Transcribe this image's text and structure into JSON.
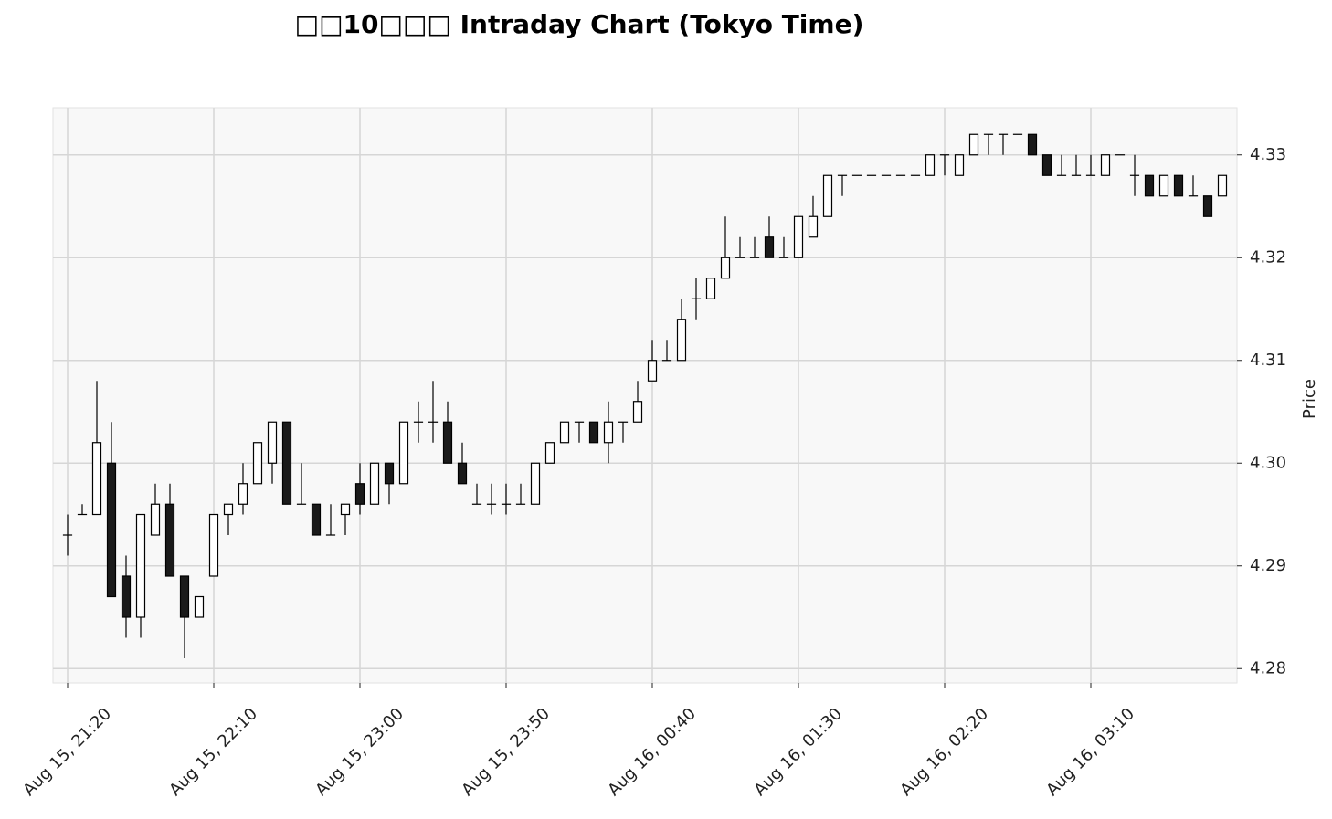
{
  "chart_data": {
    "type": "candlestick",
    "title": "□□10□□□ Intraday Chart (Tokyo Time)",
    "y_label": "Price",
    "categories": [
      "Aug 15, 21:20",
      null,
      null,
      null,
      null,
      null,
      null,
      null,
      null,
      null,
      "Aug 15, 22:10",
      null,
      null,
      null,
      null,
      null,
      null,
      null,
      null,
      null,
      "Aug 15, 23:00",
      null,
      null,
      null,
      null,
      null,
      null,
      null,
      null,
      null,
      "Aug 15, 23:50",
      null,
      null,
      null,
      null,
      null,
      null,
      null,
      null,
      null,
      "Aug 16, 00:40",
      null,
      null,
      null,
      null,
      null,
      null,
      null,
      null,
      null,
      "Aug 16, 01:30",
      null,
      null,
      null,
      null,
      null,
      null,
      null,
      null,
      null,
      "Aug 16, 02:20",
      null,
      null,
      null,
      null,
      null,
      null,
      null,
      null,
      null,
      "Aug 16, 03:10",
      null,
      null,
      null,
      null,
      null,
      null,
      null,
      null,
      null
    ],
    "open": [
      4.293,
      4.295,
      4.295,
      4.3,
      4.289,
      4.285,
      4.293,
      4.296,
      4.289,
      4.285,
      4.289,
      4.295,
      4.296,
      4.298,
      4.3,
      4.304,
      4.296,
      4.296,
      4.293,
      4.295,
      4.298,
      4.296,
      4.3,
      4.298,
      4.304,
      4.304,
      4.304,
      4.3,
      4.296,
      4.296,
      4.296,
      4.296,
      4.296,
      4.3,
      4.302,
      4.304,
      4.304,
      4.302,
      4.304,
      4.304,
      4.308,
      4.31,
      4.31,
      4.316,
      4.316,
      4.318,
      4.32,
      4.32,
      4.322,
      4.32,
      4.32,
      4.322,
      4.324,
      4.328,
      4.328,
      4.328,
      4.328,
      4.328,
      4.328,
      4.328,
      4.33,
      4.328,
      4.33,
      4.332,
      4.332,
      4.332,
      4.332,
      4.33,
      4.328,
      4.328,
      4.328,
      4.328,
      4.33,
      4.328,
      4.328,
      4.326,
      4.328,
      4.326,
      4.326,
      4.326
    ],
    "high": [
      4.295,
      4.296,
      4.308,
      4.304,
      4.291,
      4.295,
      4.298,
      4.298,
      4.289,
      4.287,
      4.295,
      4.296,
      4.3,
      4.302,
      4.304,
      4.304,
      4.3,
      4.296,
      4.296,
      4.296,
      4.3,
      4.3,
      4.3,
      4.304,
      4.306,
      4.308,
      4.306,
      4.302,
      4.298,
      4.298,
      4.298,
      4.298,
      4.3,
      4.302,
      4.304,
      4.304,
      4.304,
      4.306,
      4.304,
      4.308,
      4.312,
      4.312,
      4.316,
      4.318,
      4.318,
      4.324,
      4.322,
      4.322,
      4.324,
      4.322,
      4.324,
      4.326,
      4.328,
      4.328,
      4.328,
      4.328,
      4.328,
      4.328,
      4.328,
      4.33,
      4.33,
      4.33,
      4.332,
      4.332,
      4.332,
      4.332,
      4.332,
      4.33,
      4.33,
      4.33,
      4.33,
      4.33,
      4.33,
      4.33,
      4.328,
      4.328,
      4.328,
      4.328,
      4.326,
      4.328
    ],
    "low": [
      4.291,
      4.295,
      4.295,
      4.287,
      4.283,
      4.283,
      4.293,
      4.289,
      4.281,
      4.285,
      4.289,
      4.293,
      4.295,
      4.298,
      4.298,
      4.296,
      4.296,
      4.293,
      4.293,
      4.293,
      4.295,
      4.296,
      4.296,
      4.298,
      4.302,
      4.302,
      4.3,
      4.298,
      4.296,
      4.295,
      4.295,
      4.296,
      4.296,
      4.3,
      4.302,
      4.302,
      4.302,
      4.3,
      4.302,
      4.304,
      4.308,
      4.31,
      4.31,
      4.314,
      4.316,
      4.318,
      4.32,
      4.32,
      4.32,
      4.32,
      4.32,
      4.322,
      4.324,
      4.326,
      4.328,
      4.328,
      4.328,
      4.328,
      4.328,
      4.328,
      4.328,
      4.328,
      4.33,
      4.33,
      4.33,
      4.332,
      4.33,
      4.328,
      4.328,
      4.328,
      4.328,
      4.328,
      4.33,
      4.326,
      4.326,
      4.326,
      4.326,
      4.326,
      4.324,
      4.326
    ],
    "close": [
      4.293,
      4.295,
      4.302,
      4.287,
      4.285,
      4.295,
      4.296,
      4.289,
      4.285,
      4.287,
      4.295,
      4.296,
      4.298,
      4.302,
      4.304,
      4.296,
      4.296,
      4.293,
      4.293,
      4.296,
      4.296,
      4.3,
      4.298,
      4.304,
      4.304,
      4.304,
      4.3,
      4.298,
      4.296,
      4.296,
      4.296,
      4.296,
      4.3,
      4.302,
      4.304,
      4.304,
      4.302,
      4.304,
      4.304,
      4.306,
      4.31,
      4.31,
      4.314,
      4.316,
      4.318,
      4.32,
      4.32,
      4.32,
      4.32,
      4.32,
      4.324,
      4.324,
      4.328,
      4.328,
      4.328,
      4.328,
      4.328,
      4.328,
      4.328,
      4.33,
      4.33,
      4.33,
      4.332,
      4.332,
      4.332,
      4.332,
      4.33,
      4.328,
      4.328,
      4.328,
      4.328,
      4.33,
      4.33,
      4.328,
      4.326,
      4.328,
      4.326,
      4.326,
      4.324,
      4.328
    ],
    "up_color": "#ffffff",
    "down_color": "#1a1a1a",
    "edge_color": "#000000",
    "ylim": [
      4.2786,
      4.3346
    ],
    "yticks": [
      4.28,
      4.29,
      {
        "value": 4.3,
        "label": "4.30"
      },
      4.31,
      4.32,
      4.33
    ],
    "y_axis_side": "right",
    "grid": true
  }
}
